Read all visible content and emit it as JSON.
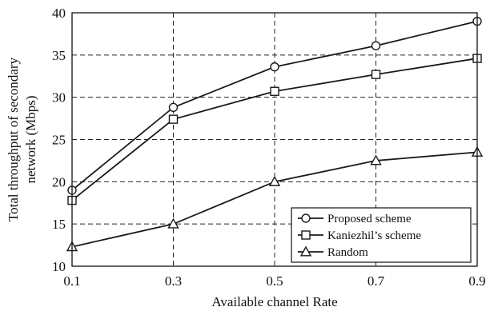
{
  "chart_data": {
    "type": "line",
    "title": "",
    "xlabel": "Available channel Rate",
    "ylabel_lines": [
      "Total throughput of secondary",
      "network (Mbps)"
    ],
    "x": [
      0.1,
      0.3,
      0.5,
      0.7,
      0.9
    ],
    "x_tick_labels": [
      "0.1",
      "0.3",
      "0.5",
      "0.7",
      "0.9"
    ],
    "xlim": [
      0.1,
      0.9
    ],
    "ylim": [
      10,
      40
    ],
    "y_ticks": [
      10,
      15,
      20,
      25,
      30,
      35,
      40
    ],
    "y_tick_labels": [
      "10",
      "15",
      "20",
      "25",
      "30",
      "35",
      "40"
    ],
    "grid": true,
    "legend_position": "bottom-right",
    "series": [
      {
        "name": "Proposed scheme",
        "marker": "circle",
        "values": [
          19.0,
          28.8,
          33.6,
          36.1,
          39.0
        ]
      },
      {
        "name": "Kaniezhil’s scheme",
        "marker": "square",
        "values": [
          17.8,
          27.4,
          30.7,
          32.7,
          34.6
        ]
      },
      {
        "name": "Random",
        "marker": "triangle",
        "values": [
          12.3,
          15.0,
          20.0,
          22.5,
          23.5
        ]
      }
    ]
  }
}
